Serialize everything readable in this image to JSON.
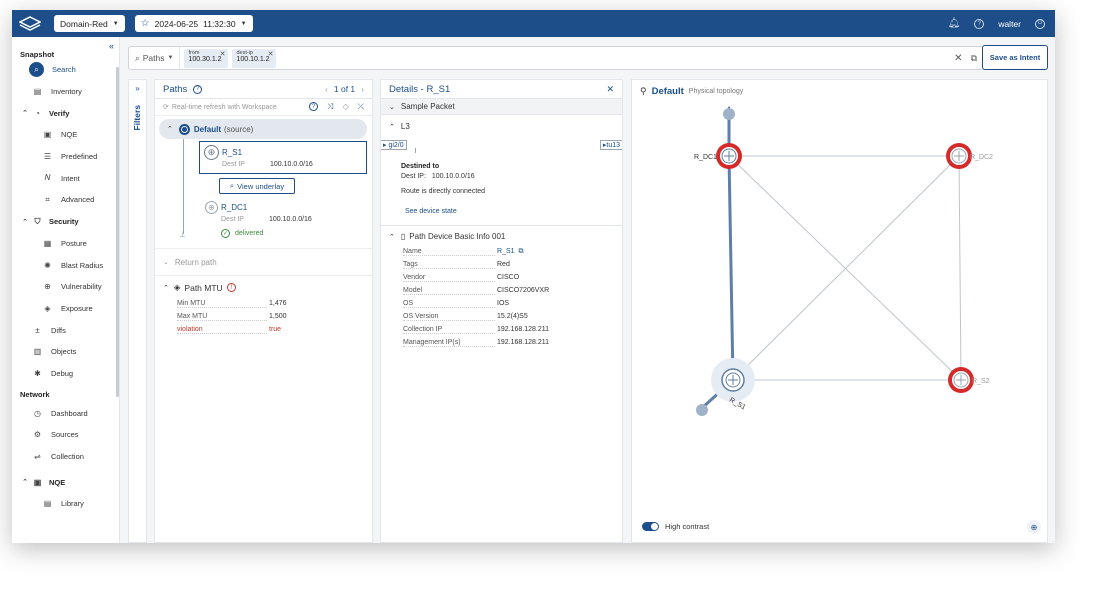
{
  "topbar": {
    "domain": "Domain-Red",
    "snapshot_date": "2024-06-25",
    "snapshot_time": "11:32:30",
    "user": "walter"
  },
  "sidebar": {
    "snapshot_header": "Snapshot",
    "search": "Search",
    "inventory": "Inventory",
    "verify": "Verify",
    "nqe": "NQE",
    "predefined": "Predefined",
    "intent": "Intent",
    "advanced": "Advanced",
    "security": "Security",
    "posture": "Posture",
    "blast_radius": "Blast Radius",
    "vulnerability": "Vulnerability",
    "exposure": "Exposure",
    "diffs": "Diffs",
    "objects": "Objects",
    "debug": "Debug",
    "network_header": "Network",
    "dashboard": "Dashboard",
    "sources": "Sources",
    "collection": "Collection",
    "nqe2": "NQE",
    "library": "Library"
  },
  "searchbar": {
    "type": "Paths",
    "chips": [
      {
        "key": "from",
        "value": "100.30.1.2"
      },
      {
        "key": "dest-ip",
        "value": "100.10.1.2"
      }
    ],
    "save_label": "Save as Intent"
  },
  "filters": {
    "label": "Filters"
  },
  "paths": {
    "title": "Paths",
    "pager": "1 of 1",
    "refresh": "Real-time refresh with Workspace",
    "path_name": "Default",
    "path_tag": "(source)",
    "hop1": {
      "name": "R_S1",
      "dest_label": "Dest IP",
      "dest_value": "100.10.0.0/16"
    },
    "view_underlay": "View underlay",
    "hop2": {
      "name": "R_DC1",
      "dest_label": "Dest IP",
      "dest_value": "100.10.0.0/16"
    },
    "status": "delivered",
    "return_path": "Return path",
    "mtu_title": "Path MTU",
    "mtu": [
      {
        "label": "Min MTU",
        "value": "1,476"
      },
      {
        "label": "Max MTU",
        "value": "1,500"
      },
      {
        "label": "violation",
        "value": "true"
      }
    ]
  },
  "details": {
    "title": "Details - R_S1",
    "sample_packet": "Sample Packet",
    "l3": "L3",
    "iface_in": "gi2/0",
    "iface_out": "tu13",
    "destined_to": "Destined to",
    "dest_ip_label": "Dest IP:",
    "dest_ip_value": "100.10.0.0/16",
    "route_note": "Route is directly connected",
    "see_state": "See device state",
    "basic_info_title": "Path Device Basic Info 001",
    "info": [
      {
        "label": "Name",
        "value": "R_S1"
      },
      {
        "label": "Tags",
        "value": "Red"
      },
      {
        "label": "Vendor",
        "value": "CISCO"
      },
      {
        "label": "Model",
        "value": "CISCO7206VXR"
      },
      {
        "label": "OS",
        "value": "IOS"
      },
      {
        "label": "OS Version",
        "value": "15.2(4)S5"
      },
      {
        "label": "Collection IP",
        "value": "192.168.128.211"
      },
      {
        "label": "Management IP(s)",
        "value": "192.168.128.211"
      }
    ]
  },
  "topology": {
    "title": "Default",
    "subtitle": "Physical topology",
    "nodes": {
      "r_dc1": "R_DC1",
      "r_dc2": "R_DC2",
      "r_s1": "R_S1",
      "r_s2": "R_S2"
    },
    "high_contrast": "High contrast"
  }
}
